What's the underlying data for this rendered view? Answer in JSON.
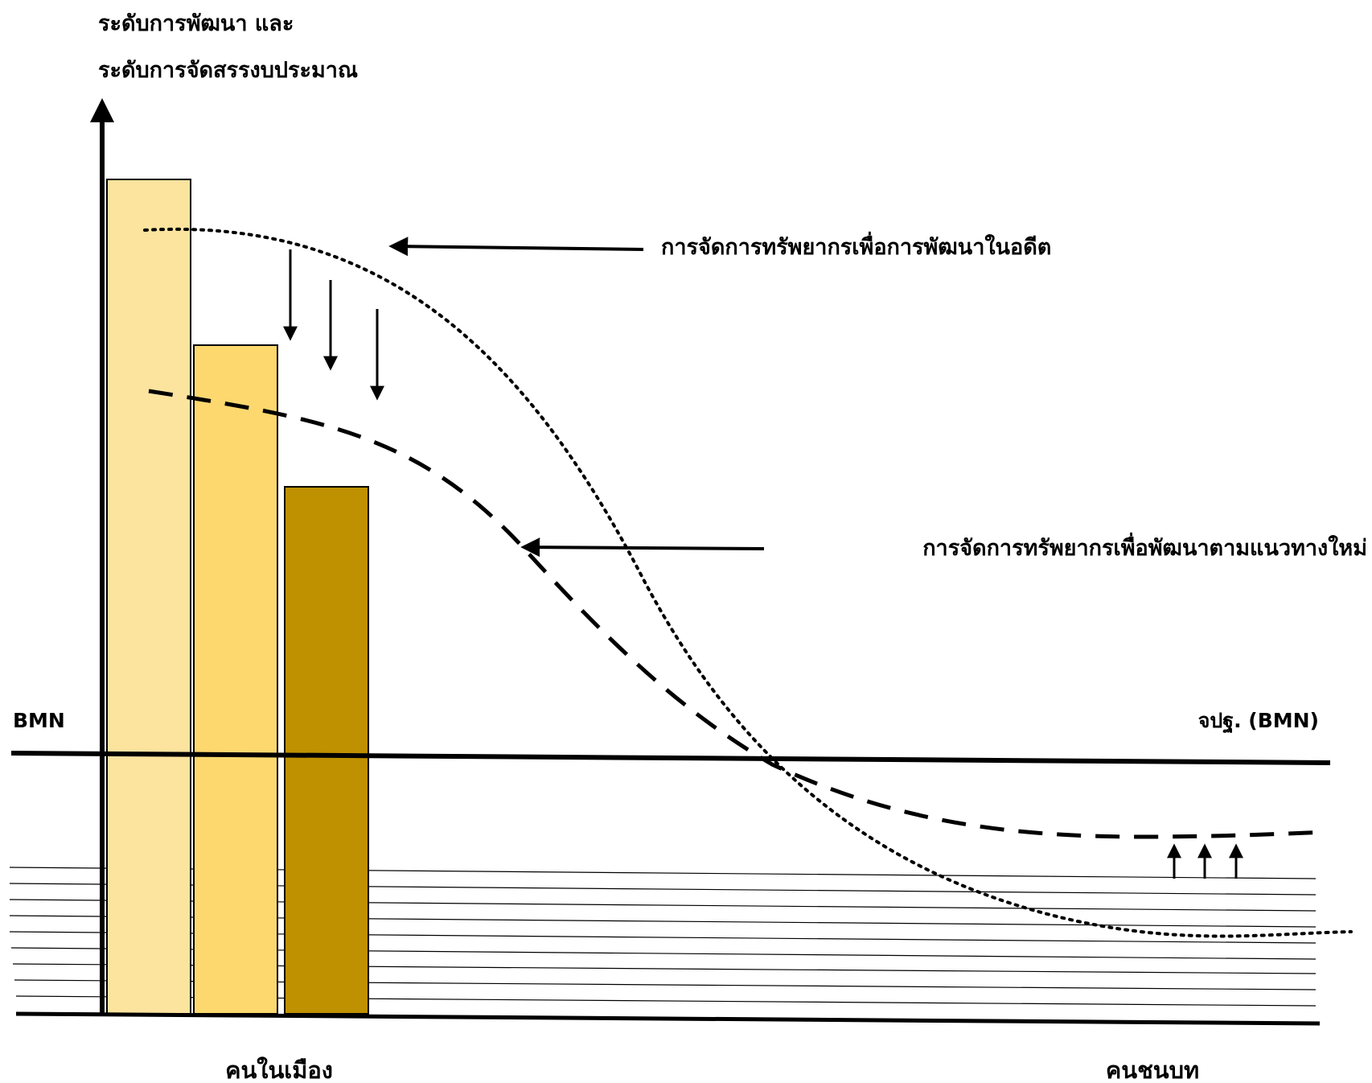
{
  "y_axis_title": [
    "ระดับการพัฒนา และ",
    "ระดับการจัดสรรงบประมาณ"
  ],
  "bmn_left": "BMN",
  "bmn_right": "จปฐ. (BMN)",
  "annotation_past": "การจัดการทรัพยากรเพื่อการพัฒนาในอดีต",
  "annotation_new": "การจัดการทรัพยากรเพื่อพัฒนาตามแนวทางใหม่",
  "x_label_urban": "คนในเมือง",
  "x_label_rural": "คนชนบท",
  "colors": {
    "bar_light": "#FCE39E",
    "bar_mid": "#FCD86E",
    "bar_dark": "#BF9000",
    "line": "#000000"
  }
}
